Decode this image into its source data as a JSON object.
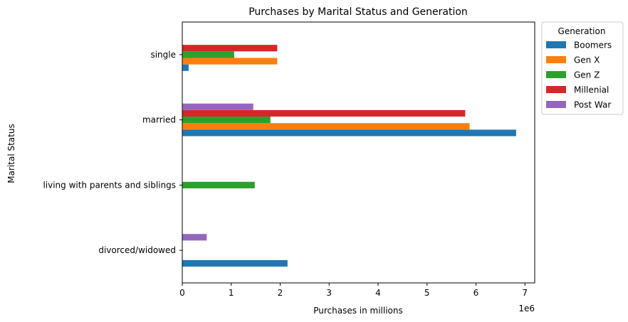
{
  "chart_data": {
    "type": "bar",
    "orientation": "horizontal",
    "title": "Purchases by Marital Status and Generation",
    "xlabel": "Purchases in millions",
    "ylabel": "Marital Status",
    "x_offset_label": "1e6",
    "xlim": [
      0,
      7200000
    ],
    "x_ticks": [
      0,
      1000000,
      2000000,
      3000000,
      4000000,
      5000000,
      6000000,
      7000000
    ],
    "x_tick_labels": [
      "0",
      "1",
      "2",
      "3",
      "4",
      "5",
      "6",
      "7"
    ],
    "categories": [
      "divorced/widowed",
      "living with parents and siblings",
      "married",
      "single"
    ],
    "legend": {
      "title": "Generation",
      "placement": "outside-upper-right"
    },
    "grid": false,
    "series": [
      {
        "name": "Boomers",
        "color": "#1f77b4",
        "values": [
          2150000,
          0,
          6820000,
          130000
        ]
      },
      {
        "name": "Gen X",
        "color": "#ff7f0e",
        "values": [
          0,
          0,
          5870000,
          1940000
        ]
      },
      {
        "name": "Gen Z",
        "color": "#2ca02c",
        "values": [
          0,
          1480000,
          1800000,
          1060000
        ]
      },
      {
        "name": "Millenial",
        "color": "#d62728",
        "values": [
          0,
          0,
          5780000,
          1940000
        ]
      },
      {
        "name": "Post War",
        "color": "#9467bd",
        "values": [
          500000,
          0,
          1450000,
          0
        ]
      }
    ]
  }
}
